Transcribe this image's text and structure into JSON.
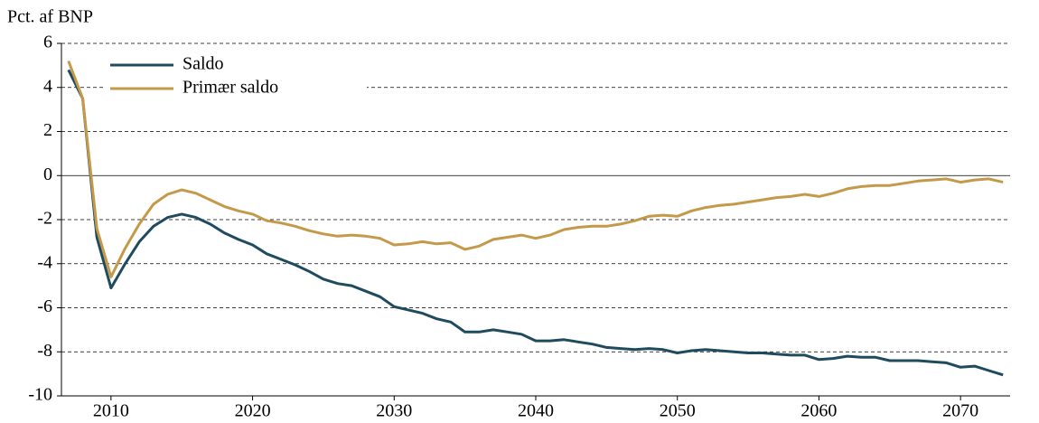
{
  "chart_data": {
    "type": "line",
    "y_label": "Pct. af BNP",
    "x": [
      2007,
      2008,
      2009,
      2010,
      2011,
      2012,
      2013,
      2014,
      2015,
      2016,
      2017,
      2018,
      2019,
      2020,
      2021,
      2022,
      2023,
      2024,
      2025,
      2026,
      2027,
      2028,
      2029,
      2030,
      2031,
      2032,
      2033,
      2034,
      2035,
      2036,
      2037,
      2038,
      2039,
      2040,
      2041,
      2042,
      2043,
      2044,
      2045,
      2046,
      2047,
      2048,
      2049,
      2050,
      2051,
      2052,
      2053,
      2054,
      2055,
      2056,
      2057,
      2058,
      2059,
      2060,
      2061,
      2062,
      2063,
      2064,
      2065,
      2066,
      2067,
      2068,
      2069,
      2070,
      2071,
      2072,
      2073
    ],
    "series": [
      {
        "name": "Saldo",
        "color": "#1f4b5e",
        "values": [
          4.8,
          3.5,
          -2.8,
          -5.1,
          -4.0,
          -3.0,
          -2.3,
          -1.9,
          -1.75,
          -1.9,
          -2.2,
          -2.6,
          -2.9,
          -3.15,
          -3.55,
          -3.8,
          -4.05,
          -4.35,
          -4.7,
          -4.9,
          -5.0,
          -5.25,
          -5.5,
          -5.95,
          -6.1,
          -6.25,
          -6.5,
          -6.65,
          -7.1,
          -7.1,
          -7.0,
          -7.1,
          -7.2,
          -7.5,
          -7.5,
          -7.45,
          -7.55,
          -7.65,
          -7.8,
          -7.85,
          -7.9,
          -7.85,
          -7.9,
          -8.05,
          -7.95,
          -7.9,
          -7.95,
          -8.0,
          -8.05,
          -8.05,
          -8.1,
          -8.15,
          -8.15,
          -8.35,
          -8.3,
          -8.2,
          -8.25,
          -8.25,
          -8.4,
          -8.4,
          -8.4,
          -8.45,
          -8.5,
          -8.7,
          -8.65,
          -8.85,
          -9.05
        ]
      },
      {
        "name": "Primær saldo",
        "color": "#c49a4a",
        "values": [
          5.2,
          3.5,
          -2.4,
          -4.6,
          -3.3,
          -2.2,
          -1.3,
          -0.85,
          -0.65,
          -0.8,
          -1.1,
          -1.4,
          -1.6,
          -1.75,
          -2.05,
          -2.15,
          -2.3,
          -2.5,
          -2.65,
          -2.75,
          -2.7,
          -2.75,
          -2.85,
          -3.15,
          -3.1,
          -3.0,
          -3.1,
          -3.05,
          -3.35,
          -3.2,
          -2.9,
          -2.8,
          -2.7,
          -2.85,
          -2.7,
          -2.45,
          -2.35,
          -2.3,
          -2.3,
          -2.2,
          -2.05,
          -1.85,
          -1.8,
          -1.85,
          -1.6,
          -1.45,
          -1.35,
          -1.3,
          -1.2,
          -1.1,
          -1.0,
          -0.95,
          -0.85,
          -0.95,
          -0.8,
          -0.6,
          -0.5,
          -0.45,
          -0.45,
          -0.35,
          -0.25,
          -0.2,
          -0.15,
          -0.3,
          -0.2,
          -0.15,
          -0.3
        ]
      }
    ],
    "xlim": [
      2006.5,
      2073.5
    ],
    "xticks": [
      2010,
      2020,
      2030,
      2040,
      2050,
      2060,
      2070
    ],
    "ylim": [
      -10,
      6
    ],
    "yticks": [
      -10,
      -8,
      -6,
      -4,
      -2,
      0,
      2,
      4,
      6
    ],
    "grid": true,
    "legend": "upper left"
  }
}
